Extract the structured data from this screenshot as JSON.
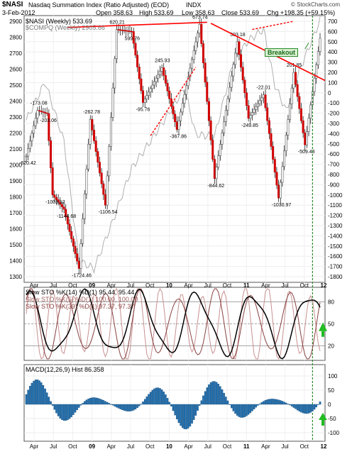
{
  "header": {
    "symbol": "$NASI",
    "title": "Nasdaq Summation Index (Ratio Adjusted) (EOD)",
    "exchange": "INDX",
    "date": "3-Feb-2012",
    "open": "Open 358.63",
    "high": "High 533.69",
    "low": "Low 358.63",
    "close": "Close 533.69",
    "change": "Chg +198.35 (+59.15%)",
    "credit": "© StockCharts.com",
    "legend1": "$NASI (Weekly) 533.69",
    "legend2": "$COMPQ (Weekly) 2905.66"
  },
  "panels": {
    "sto": {
      "legend": [
        "Slow STO %K(14) %D(1) 95.44, 95.44",
        "Slow STO %K(5) %D(1) 100.00, 100.00",
        "Slow STO %K(39) %D(1) 97.37, 97.37"
      ],
      "ticks": [
        "80",
        "50",
        "20"
      ]
    },
    "macd": {
      "legend": "MACD(12,26,9) Hist 86.358",
      "ticks": [
        "100",
        "50",
        "0",
        "-50",
        "-100"
      ]
    }
  },
  "annotations": {
    "breakout": "Breakout"
  },
  "colors": {
    "up_candle": "#9a9a9a",
    "down_candle": "#d00000",
    "compq": "#b0b0b0",
    "trend": "#ff0000",
    "hist": "#1f6fb0",
    "arrow": "#22bb22",
    "sto14": "#000000",
    "sto5": "#c89090",
    "sto39": "#884040"
  },
  "chart_data": {
    "type": "candlestick",
    "x_labels": [
      "Apr",
      "Jul",
      "Oct",
      "09",
      "Apr",
      "Jul",
      "Oct",
      "10",
      "Apr",
      "Jul",
      "Oct",
      "11",
      "Apr",
      "Jul",
      "Oct",
      "12"
    ],
    "left_axis_ticks": [
      "2900",
      "2800",
      "2700",
      "2600",
      "2500",
      "2400",
      "2300",
      "2200",
      "2100",
      "2000",
      "1900",
      "1800",
      "1700",
      "1600",
      "1500",
      "1400",
      "1300"
    ],
    "right_axis_ticks": [
      "700",
      "600",
      "500",
      "400",
      "300",
      "200",
      "100",
      "0",
      "-100",
      "-200",
      "-300",
      "-400",
      "-500",
      "-600",
      "-700",
      "-800",
      "-900",
      "-1000",
      "-1100",
      "-1200",
      "-1300",
      "-1400",
      "-1500",
      "-1600",
      "-1700",
      "-1800"
    ],
    "nasi_ylim": [
      -1800,
      700
    ],
    "compq_ylim": [
      1300,
      2900
    ],
    "value_labels": [
      "-620.42",
      "-173.08",
      "-203.06",
      "-1003.12",
      "-1144.68",
      "-1724.46",
      "-262.78",
      "-1106.54",
      "620.21",
      "599.76",
      "-95.76",
      "245.93",
      "-367.86",
      "673.74",
      "-844.62",
      "503.18",
      "-249.85",
      "-22.01",
      "-1030.97",
      "201.85",
      "-509.48"
    ],
    "nasi_series_sample": [
      {
        "t": 0,
        "v": -620
      },
      {
        "t": 6,
        "v": -173
      },
      {
        "t": 11,
        "v": -203
      },
      {
        "t": 14,
        "v": -1000
      },
      {
        "t": 20,
        "v": -1140
      },
      {
        "t": 28,
        "v": -1720
      },
      {
        "t": 34,
        "v": -260
      },
      {
        "t": 42,
        "v": -1100
      },
      {
        "t": 48,
        "v": 620
      },
      {
        "t": 56,
        "v": 600
      },
      {
        "t": 62,
        "v": -95
      },
      {
        "t": 72,
        "v": 245
      },
      {
        "t": 80,
        "v": -360
      },
      {
        "t": 92,
        "v": 670
      },
      {
        "t": 100,
        "v": -840
      },
      {
        "t": 112,
        "v": 500
      },
      {
        "t": 118,
        "v": -250
      },
      {
        "t": 126,
        "v": -20
      },
      {
        "t": 134,
        "v": -1030
      },
      {
        "t": 142,
        "v": 200
      },
      {
        "t": 148,
        "v": -510
      },
      {
        "t": 156,
        "v": 534
      }
    ],
    "compq_series_sample": [
      {
        "t": 0,
        "v": 2280
      },
      {
        "t": 10,
        "v": 2520
      },
      {
        "t": 20,
        "v": 2150
      },
      {
        "t": 28,
        "v": 1400
      },
      {
        "t": 36,
        "v": 1350
      },
      {
        "t": 46,
        "v": 1650
      },
      {
        "t": 56,
        "v": 1980
      },
      {
        "t": 66,
        "v": 2150
      },
      {
        "t": 76,
        "v": 2330
      },
      {
        "t": 84,
        "v": 2480
      },
      {
        "t": 90,
        "v": 2190
      },
      {
        "t": 100,
        "v": 2180
      },
      {
        "t": 110,
        "v": 2650
      },
      {
        "t": 118,
        "v": 2780
      },
      {
        "t": 126,
        "v": 2850
      },
      {
        "t": 132,
        "v": 2500
      },
      {
        "t": 138,
        "v": 2340
      },
      {
        "t": 146,
        "v": 2620
      },
      {
        "t": 156,
        "v": 2905
      }
    ]
  }
}
